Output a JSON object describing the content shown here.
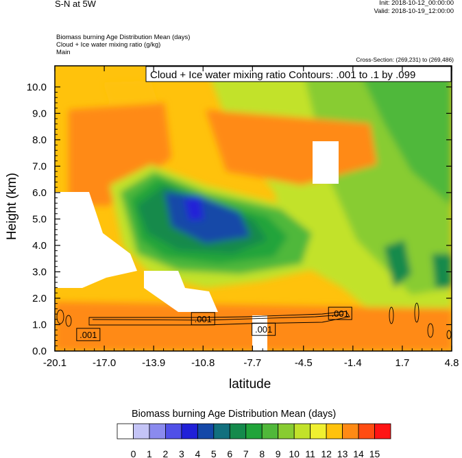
{
  "header": {
    "title": "S-N at 5W",
    "init": "Init: 2018-10-12_00:00:00",
    "valid": "Valid: 2018-10-19_12:00:00",
    "field1": "Biomass burning Age Distribution Mean    (days)",
    "field2": "Cloud + Ice water mixing ratio   (g/kg)",
    "field3": "Main",
    "cross_section": "Cross-Section: (269,231) to (269,486)"
  },
  "chart_data": {
    "type": "heatmap",
    "title": "Cloud + Ice water mixing ratio Contours: .001 to .1 by .099",
    "xlabel": "latitude",
    "ylabel": "Height (km)",
    "x_ticks": [
      "-20.1",
      "-17.0",
      "-13.9",
      "-10.8",
      "-7.7",
      "-4.5",
      "-1.4",
      "1.7",
      "4.8"
    ],
    "y_ticks": [
      "0.0",
      "1.0",
      "2.0",
      "3.0",
      "4.0",
      "5.0",
      "6.0",
      "7.0",
      "8.0",
      "9.0",
      "10.0"
    ],
    "xlim": [
      -20.1,
      4.8
    ],
    "ylim": [
      0.0,
      10.8
    ],
    "contour_labels": [
      ".001",
      ".001",
      ".001",
      ".001"
    ],
    "colorbar": {
      "title": "Biomass burning Age Distribution Mean  (days)",
      "ticks": [
        "0",
        "1",
        "2",
        "3",
        "4",
        "5",
        "6",
        "7",
        "8",
        "9",
        "10",
        "11",
        "12",
        "13",
        "14",
        "15"
      ],
      "colors": [
        "#ffffff",
        "#c4c4f6",
        "#8a8aee",
        "#5050e8",
        "#2020d8",
        "#1448a8",
        "#12707e",
        "#148a4c",
        "#20a43a",
        "#50b83a",
        "#88cc32",
        "#c2e22a",
        "#f0f030",
        "#ffc20c",
        "#ff8a14",
        "#ff4c12",
        "#ff1414"
      ]
    }
  }
}
